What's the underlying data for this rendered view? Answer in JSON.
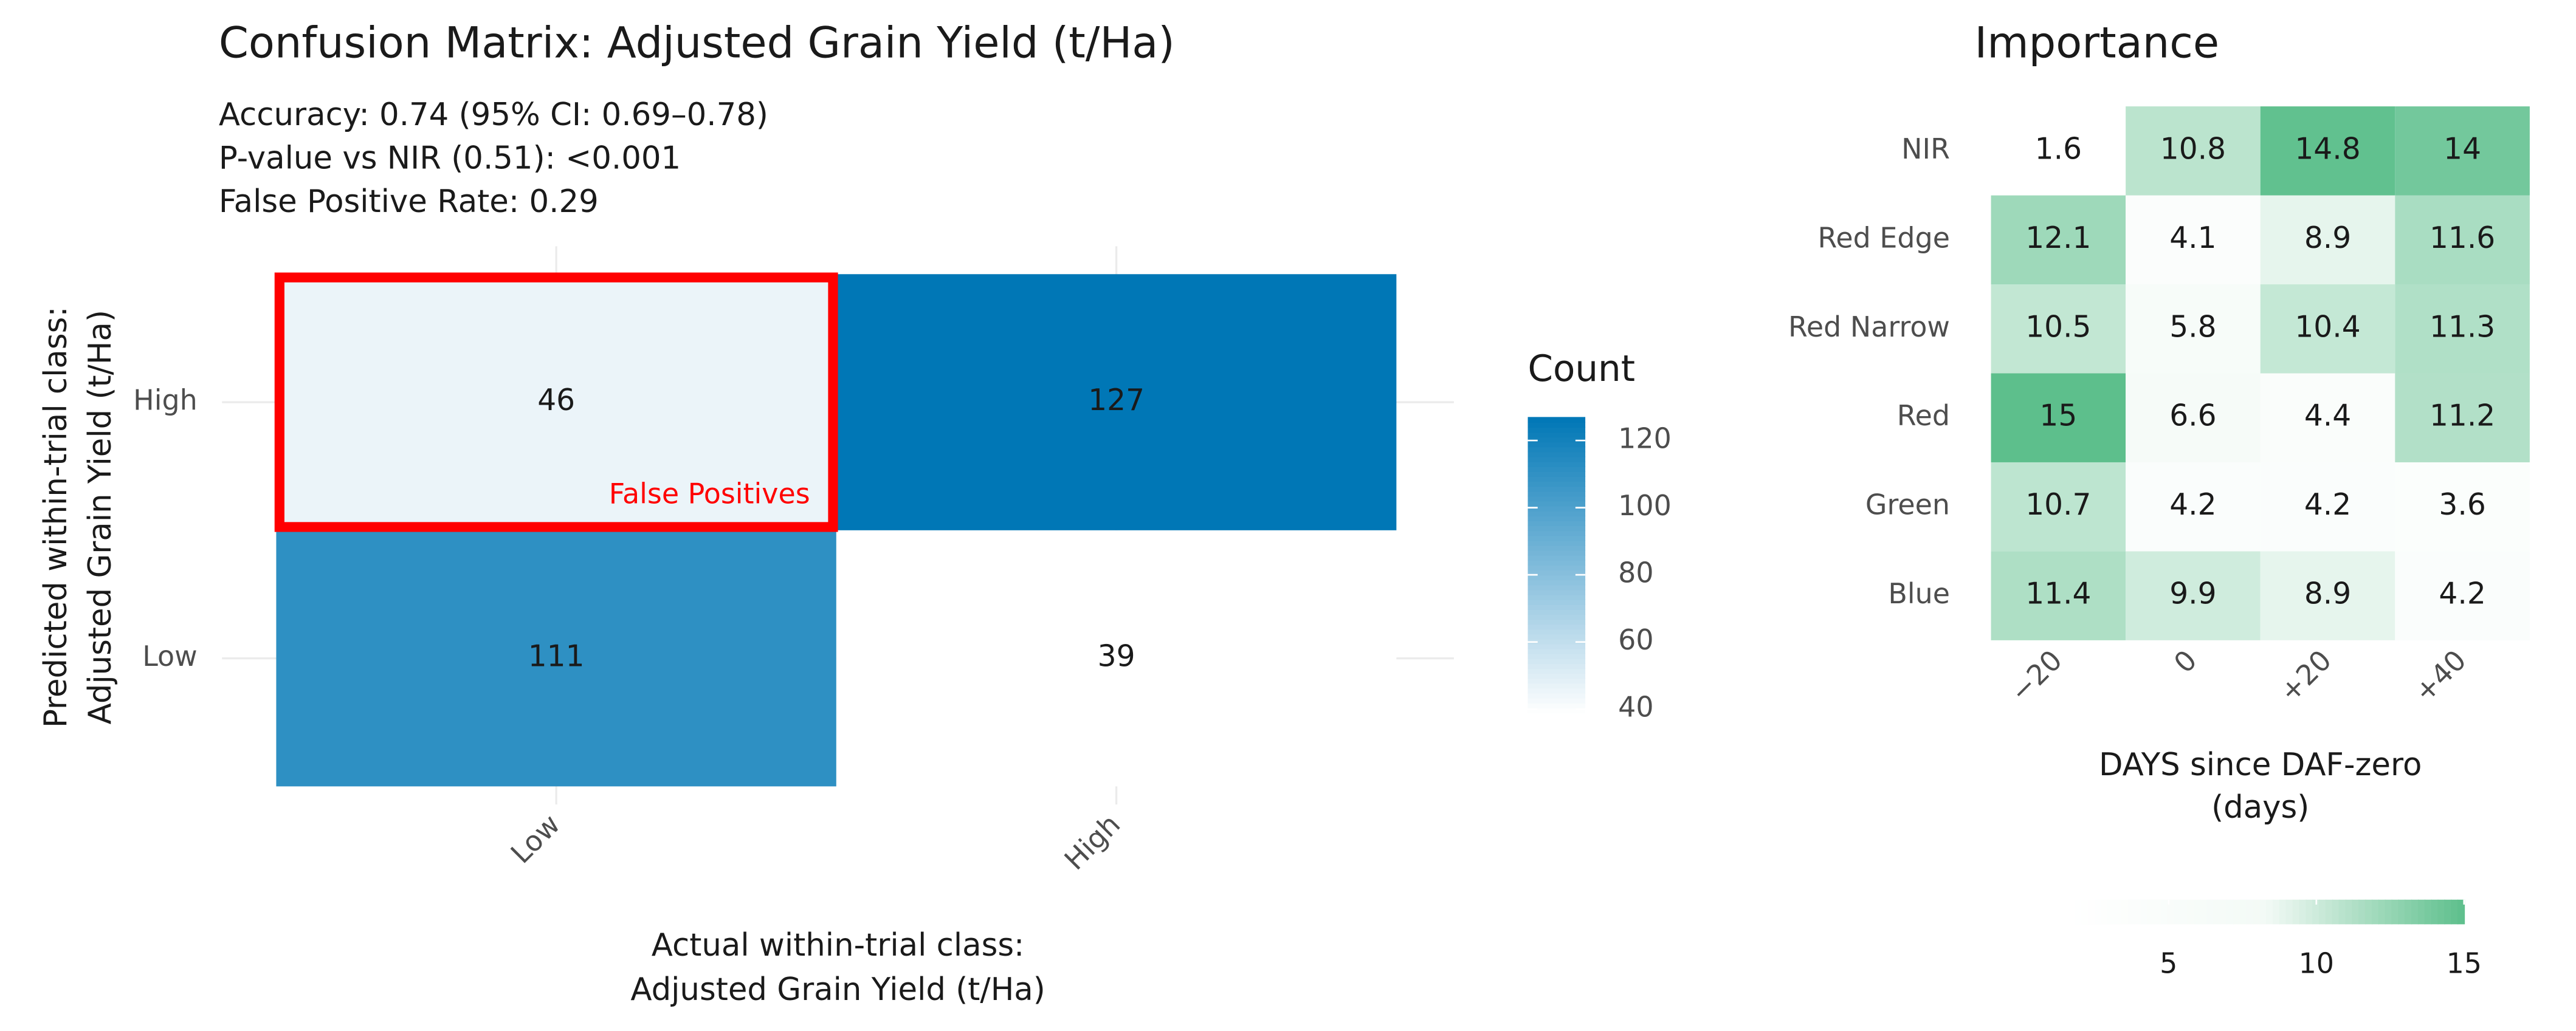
{
  "chart_data": [
    {
      "type": "heatmap",
      "title": "Confusion Matrix: Adjusted Grain Yield (t/Ha)",
      "subtitle": [
        "Accuracy: 0.74 (95% CI: 0.69–0.78)",
        "P-value vs NIR (0.51): <0.001",
        "False Positive Rate: 0.29"
      ],
      "x_label": [
        "Actual within-trial class:",
        "Adjusted Grain Yield (t/Ha)"
      ],
      "y_label": [
        "Predicted within-trial class:",
        "Adjusted Grain Yield (t/Ha)"
      ],
      "x_categories": [
        "Low",
        "High"
      ],
      "y_categories": [
        "Low",
        "High"
      ],
      "values": [
        [
          111,
          39
        ],
        [
          46,
          127
        ]
      ],
      "annotation": "False Positives",
      "annotation_color": "#ff0000",
      "legend_title": "Count",
      "clim": [
        39,
        127
      ],
      "cticks": [
        40,
        60,
        80,
        100,
        120
      ],
      "colors": [
        "#ffffff",
        "#0077b6"
      ],
      "grid": true
    },
    {
      "type": "heatmap",
      "title": "Importance",
      "x_label": [
        "DAYS since DAF-zero",
        "(days)"
      ],
      "x_categories": [
        "−20",
        "0",
        "+20",
        "+40"
      ],
      "y_categories": [
        "Blue",
        "Green",
        "Red",
        "Red Narrow",
        "Red Edge",
        "NIR"
      ],
      "values": [
        [
          11.4,
          9.9,
          8.9,
          4.2
        ],
        [
          10.7,
          4.2,
          4.2,
          3.6
        ],
        [
          15,
          6.6,
          4.4,
          11.2
        ],
        [
          10.5,
          5.8,
          10.4,
          11.3
        ],
        [
          12.1,
          4.1,
          8.9,
          11.6
        ],
        [
          1.6,
          10.8,
          14.8,
          14
        ]
      ],
      "clim": [
        1.6,
        15
      ],
      "cticks": [
        5,
        10,
        15
      ],
      "colors": [
        "#ffffff",
        "#f3faf6",
        "#5dbf8c"
      ],
      "grid": false
    }
  ]
}
